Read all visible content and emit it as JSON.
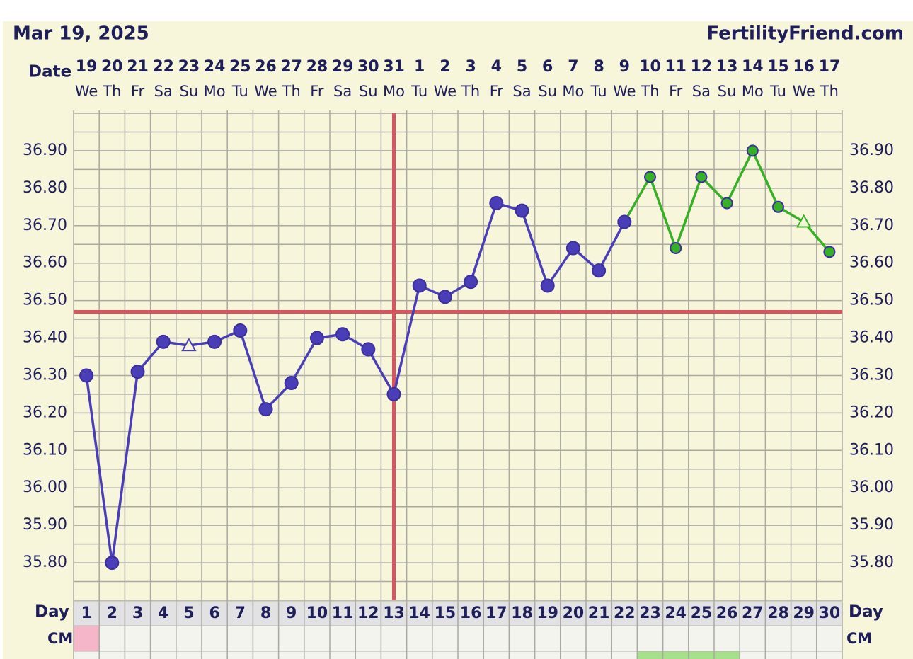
{
  "chart_data": {
    "type": "line",
    "title": "Mar 19, 2025",
    "site": "FertilityFriend.com",
    "date_label": "Date",
    "dates": [
      "19",
      "20",
      "21",
      "22",
      "23",
      "24",
      "25",
      "26",
      "27",
      "28",
      "29",
      "30",
      "31",
      "1",
      "2",
      "3",
      "4",
      "5",
      "6",
      "7",
      "8",
      "9",
      "10",
      "11",
      "12",
      "13",
      "14",
      "15",
      "16",
      "17"
    ],
    "weekdays": [
      "We",
      "Th",
      "Fr",
      "Sa",
      "Su",
      "Mo",
      "Tu",
      "We",
      "Th",
      "Fr",
      "Sa",
      "Su",
      "Mo",
      "Tu",
      "We",
      "Th",
      "Fr",
      "Sa",
      "Su",
      "Mo",
      "Tu",
      "We",
      "Th",
      "Fr",
      "Sa",
      "Su",
      "Mo",
      "Tu",
      "We",
      "Th"
    ],
    "day_label": "Day",
    "day_numbers": [
      1,
      2,
      3,
      4,
      5,
      6,
      7,
      8,
      9,
      10,
      11,
      12,
      13,
      14,
      15,
      16,
      17,
      18,
      19,
      20,
      21,
      22,
      23,
      24,
      25,
      26,
      27,
      28,
      29,
      30
    ],
    "cm_label": "CM",
    "series": [
      {
        "values": [
          36.3,
          35.8,
          36.31,
          36.39,
          36.38,
          36.39,
          36.42,
          36.21,
          36.28,
          36.4,
          36.41,
          36.37,
          36.25,
          36.54,
          36.51,
          36.55,
          36.76,
          36.74,
          36.54,
          36.64,
          36.58,
          36.71,
          36.83,
          36.64,
          36.83,
          36.76,
          36.9,
          36.75,
          36.71,
          36.63
        ],
        "colors": [
          "#4a3db8",
          "#4a3db8",
          "#4a3db8",
          "#4a3db8",
          "#4a3db8",
          "#4a3db8",
          "#4a3db8",
          "#4a3db8",
          "#4a3db8",
          "#4a3db8",
          "#4a3db8",
          "#4a3db8",
          "#4a3db8",
          "#4a3db8",
          "#4a3db8",
          "#4a3db8",
          "#4a3db8",
          "#4a3db8",
          "#4a3db8",
          "#4a3db8",
          "#4a3db8",
          "#4a3db8",
          "#36b025",
          "#36b025",
          "#36b025",
          "#36b025",
          "#36b025",
          "#36b025",
          "#36b025",
          "#36b025"
        ],
        "markers": [
          "circle",
          "circle",
          "circle",
          "circle",
          "triangle",
          "circle",
          "circle",
          "circle",
          "circle",
          "circle",
          "circle",
          "circle",
          "circle",
          "circle",
          "circle",
          "circle",
          "circle",
          "circle",
          "circle",
          "circle",
          "circle",
          "circle",
          "circle",
          "circle",
          "circle",
          "circle",
          "circle",
          "circle",
          "triangle",
          "circle"
        ]
      }
    ],
    "coverline": 36.47,
    "ovulation_day": 13,
    "marker_line_color": "#d9545e",
    "ylim": [
      35.7,
      37.0
    ],
    "yticks": [
      {
        "value": 35.8,
        "label": "35.80"
      },
      {
        "value": 35.9,
        "label": "35.90"
      },
      {
        "value": 36.0,
        "label": "36.00"
      },
      {
        "value": 36.1,
        "label": "36.10"
      },
      {
        "value": 36.2,
        "label": "36.20"
      },
      {
        "value": 36.3,
        "label": "36.30"
      },
      {
        "value": 36.4,
        "label": "36.40"
      },
      {
        "value": 36.5,
        "label": "36.50"
      },
      {
        "value": 36.6,
        "label": "36.60"
      },
      {
        "value": 36.7,
        "label": "36.70"
      },
      {
        "value": 36.8,
        "label": "36.80"
      },
      {
        "value": 36.9,
        "label": "36.90"
      }
    ],
    "minor_grid_step": 0.05,
    "grid": true
  }
}
